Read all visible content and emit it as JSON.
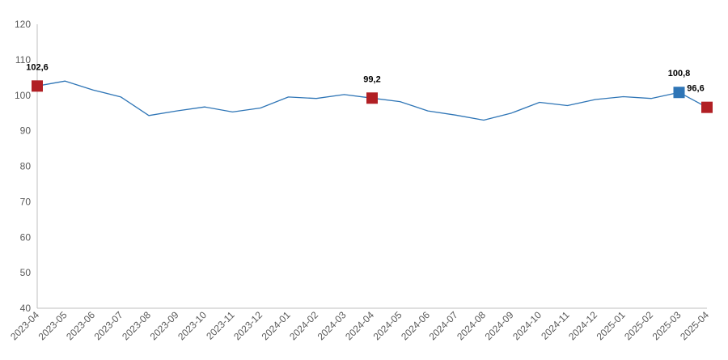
{
  "chart_data": {
    "type": "line",
    "title": "",
    "xlabel": "",
    "ylabel": "",
    "ylim": [
      40,
      120
    ],
    "yticks": [
      40,
      50,
      60,
      70,
      80,
      90,
      100,
      110,
      120
    ],
    "grid": false,
    "legend": "none",
    "categories": [
      "2023-04",
      "2023-05",
      "2023-06",
      "2023-07",
      "2023-08",
      "2023-09",
      "2023-10",
      "2023-11",
      "2023-12",
      "2024-01",
      "2024-02",
      "2024-03",
      "2024-04",
      "2024-05",
      "2024-06",
      "2024-07",
      "2024-08",
      "2024-09",
      "2024-10",
      "2024-11",
      "2024-12",
      "2025-01",
      "2025-02",
      "2025-03",
      "2025-04"
    ],
    "series": [
      {
        "name": "",
        "color": "#2e75b6",
        "values": [
          102.6,
          104.0,
          101.5,
          99.5,
          94.3,
          95.6,
          96.7,
          95.3,
          96.4,
          99.5,
          99.1,
          100.2,
          99.2,
          98.2,
          95.6,
          94.4,
          93.0,
          95.0,
          98.0,
          97.1,
          98.8,
          99.6,
          99.1,
          100.8,
          96.6
        ]
      }
    ],
    "highlights": [
      {
        "category": "2023-04",
        "value": 102.6,
        "label": "102,6",
        "color": "#b11f24"
      },
      {
        "category": "2024-04",
        "value": 99.2,
        "label": "99,2",
        "color": "#b11f24"
      },
      {
        "category": "2025-03",
        "value": 100.8,
        "label": "100,8",
        "color": "#2e75b6"
      },
      {
        "category": "2025-04",
        "value": 96.6,
        "label": "96,6",
        "color": "#b11f24"
      }
    ]
  }
}
